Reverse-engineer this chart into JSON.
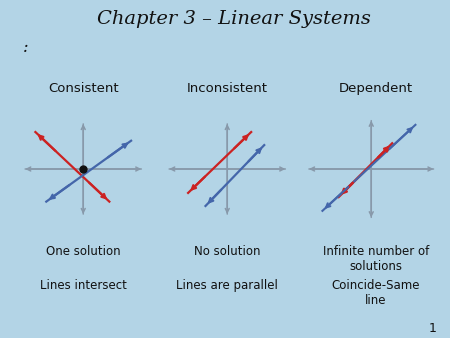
{
  "title": "Chapter 3 – Linear Systems",
  "subtitle": ":",
  "bg_color": "#b3d4e6",
  "panel_labels": [
    "Consistent",
    "Inconsistent",
    "Dependent"
  ],
  "bottom_labels_1": [
    "One solution",
    "No solution",
    "Infinite number of\nsolutions"
  ],
  "bottom_labels_2": [
    "Lines intersect",
    "Lines are parallel",
    "Coincide-Same\nline"
  ],
  "axis_color": "#8899aa",
  "red_color": "#cc2222",
  "blue_color": "#4466aa",
  "dot_color": "#111111",
  "font_color": "#111111",
  "page_num": "1"
}
